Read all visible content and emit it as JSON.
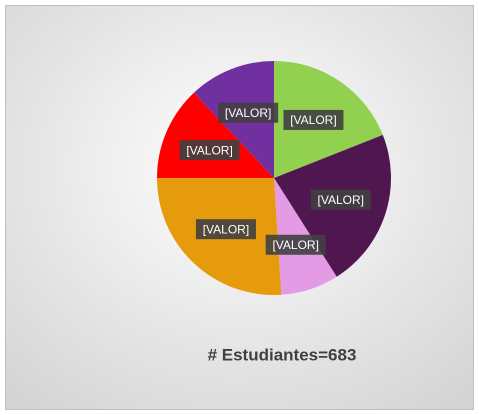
{
  "chart_data": {
    "type": "pie",
    "categories": [
      null,
      null,
      null,
      null,
      null,
      null
    ],
    "values": [
      19,
      22,
      8,
      26,
      13,
      12
    ],
    "value_labels": [
      "[VALOR]",
      "[VALOR]",
      "[VALOR]",
      "[VALOR]",
      "[VALOR]",
      "[VALOR]"
    ],
    "colors": [
      "#92d050",
      "#4f1650",
      "#e39be6",
      "#e59b0c",
      "#ff0000",
      "#7030a0"
    ],
    "annotation": "# Estudiantes=683"
  }
}
